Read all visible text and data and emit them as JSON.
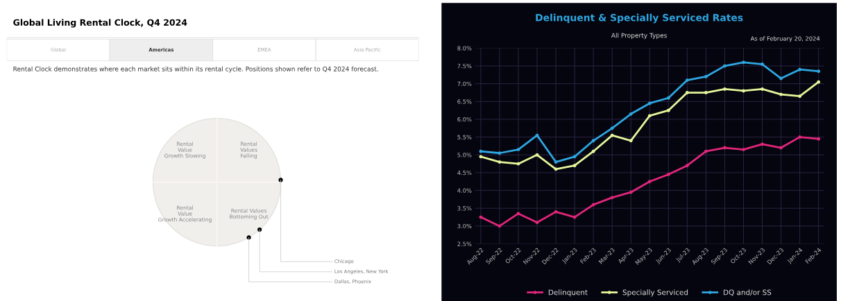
{
  "chart_data": [
    {
      "type": "other",
      "title": "Global Living Rental Clock, Q4 2024",
      "subtitle": "Rental Clock demonstrates where each market sits within its rental cycle. Positions shown refer to Q4 2024 forecast.",
      "categories": [
        "Rental Value Growth Slowing",
        "Rental Values Falling",
        "Rental Value Growth Accelerating",
        "Rental Values Bottoming Out"
      ],
      "annotations": [
        "Global",
        "Americas",
        "EMEA",
        "Asia Pacific",
        "Chicago",
        "Los Angeles, New York",
        "Dallas, Phoenix"
      ]
    },
    {
      "type": "line",
      "title": "Delinquent & Specially Serviced Rates",
      "subtitle": "All Property Types",
      "annotations": [
        "As of February 20, 2024"
      ],
      "categories": [
        "Aug-22",
        "Sep-22",
        "Oct-22",
        "Nov-22",
        "Dec-22",
        "Jan-23",
        "Feb-23",
        "Mar-23",
        "Apr-23",
        "May-23",
        "Jun-23",
        "Jul-23",
        "Aug-23",
        "Sep-23",
        "Oct-23",
        "Nov-23",
        "Dec-23",
        "Jan-24",
        "Feb-24"
      ],
      "series": [
        {
          "name": "Delinquent",
          "color": "#e0267a",
          "values": [
            3.25,
            3.0,
            3.35,
            3.1,
            3.4,
            3.25,
            3.6,
            3.8,
            3.95,
            4.25,
            4.45,
            4.7,
            5.1,
            5.2,
            5.15,
            5.3,
            5.2,
            5.5,
            5.45
          ]
        },
        {
          "name": "Specially Serviced",
          "color": "#e6f59a",
          "values": [
            4.95,
            4.8,
            4.75,
            5.0,
            4.6,
            4.7,
            5.1,
            5.55,
            5.4,
            6.1,
            6.25,
            6.75,
            6.75,
            6.85,
            6.8,
            6.85,
            6.7,
            6.65,
            7.05
          ]
        },
        {
          "name": "DQ and/or SS",
          "color": "#2ea6e0",
          "values": [
            5.1,
            5.05,
            5.15,
            5.55,
            4.8,
            4.95,
            5.4,
            5.75,
            6.15,
            6.45,
            6.6,
            7.1,
            7.2,
            7.5,
            7.6,
            7.55,
            7.15,
            7.4,
            7.35
          ]
        }
      ],
      "ylim": [
        2.5,
        8.0
      ],
      "yticks": [
        {
          "value": 2.5,
          "label": "2.5%"
        },
        {
          "value": 3.0,
          "label": "3.0%"
        },
        {
          "value": 3.5,
          "label": "3.5%"
        },
        {
          "value": 4.0,
          "label": "4.0%"
        },
        {
          "value": 4.5,
          "label": "4.5%"
        },
        {
          "value": 5.0,
          "label": "5.0%"
        },
        {
          "value": 5.5,
          "label": "5.5%"
        },
        {
          "value": 6.0,
          "label": "6.0%"
        },
        {
          "value": 6.5,
          "label": "6.5%"
        },
        {
          "value": 7.0,
          "label": "7.0%"
        },
        {
          "value": 7.5,
          "label": "7.5%"
        },
        {
          "value": 8.0,
          "label": "8.0%"
        }
      ],
      "grid": true,
      "legend": "bottom",
      "marker": "circle",
      "line_style": "solid"
    }
  ]
}
